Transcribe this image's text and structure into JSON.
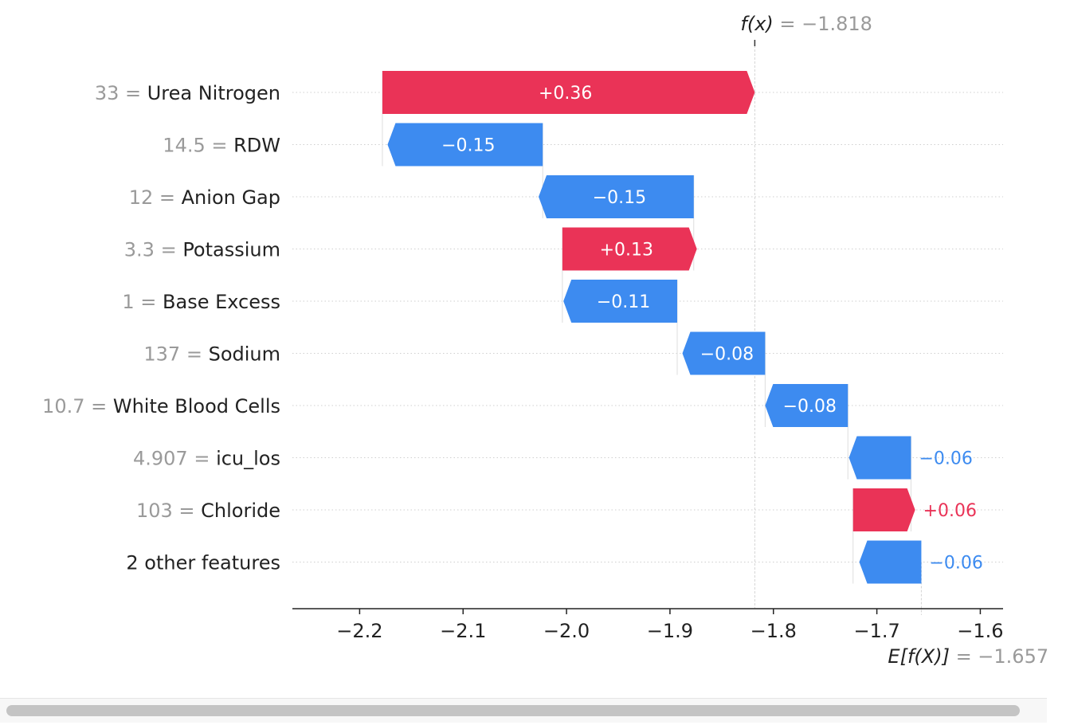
{
  "chart_data": {
    "type": "waterfall",
    "fx_label": "f(x)",
    "fx_value": -1.818,
    "fx_text": "= −1.818",
    "ex_label": "E[f(X)]",
    "ex_value": -1.657,
    "ex_text": "= −1.657",
    "xlim": [
      -2.265,
      -1.578
    ],
    "xticks": [
      {
        "value": -2.2,
        "label": "−2.2"
      },
      {
        "value": -2.1,
        "label": "−2.1"
      },
      {
        "value": -2.0,
        "label": "−2.0"
      },
      {
        "value": -1.9,
        "label": "−1.9"
      },
      {
        "value": -1.8,
        "label": "−1.8"
      },
      {
        "value": -1.7,
        "label": "−1.7"
      },
      {
        "value": -1.6,
        "label": "−1.6"
      }
    ],
    "colors": {
      "positive": "#ea3357",
      "negative": "#3d8bf0",
      "axis": "#222222",
      "muted": "#9a9a9a",
      "grid": "#cfcfcf"
    },
    "rows": [
      {
        "feature_value": "33",
        "feature": "Urea Nitrogen",
        "contribution": 0.36,
        "start": -2.178,
        "label": "+0.36"
      },
      {
        "feature_value": "14.5",
        "feature": "RDW",
        "contribution": -0.15,
        "start": -2.023,
        "label": "−0.15"
      },
      {
        "feature_value": "12",
        "feature": "Anion Gap",
        "contribution": -0.15,
        "start": -1.877,
        "label": "−0.15"
      },
      {
        "feature_value": "3.3",
        "feature": "Potassium",
        "contribution": 0.13,
        "start": -2.004,
        "label": "+0.13"
      },
      {
        "feature_value": "1",
        "feature": "Base Excess",
        "contribution": -0.11,
        "start": -1.893,
        "label": "−0.11"
      },
      {
        "feature_value": "137",
        "feature": "Sodium",
        "contribution": -0.08,
        "start": -1.808,
        "label": "−0.08"
      },
      {
        "feature_value": "10.7",
        "feature": "White Blood Cells",
        "contribution": -0.08,
        "start": -1.728,
        "label": "−0.08"
      },
      {
        "feature_value": "4.907",
        "feature": "icu_los",
        "contribution": -0.06,
        "start": -1.667,
        "label": "−0.06"
      },
      {
        "feature_value": "103",
        "feature": "Chloride",
        "contribution": 0.06,
        "start": -1.723,
        "label": "+0.06"
      },
      {
        "feature_value": "",
        "feature": "2 other features",
        "contribution": -0.06,
        "start": -1.657,
        "label": "−0.06"
      }
    ]
  }
}
